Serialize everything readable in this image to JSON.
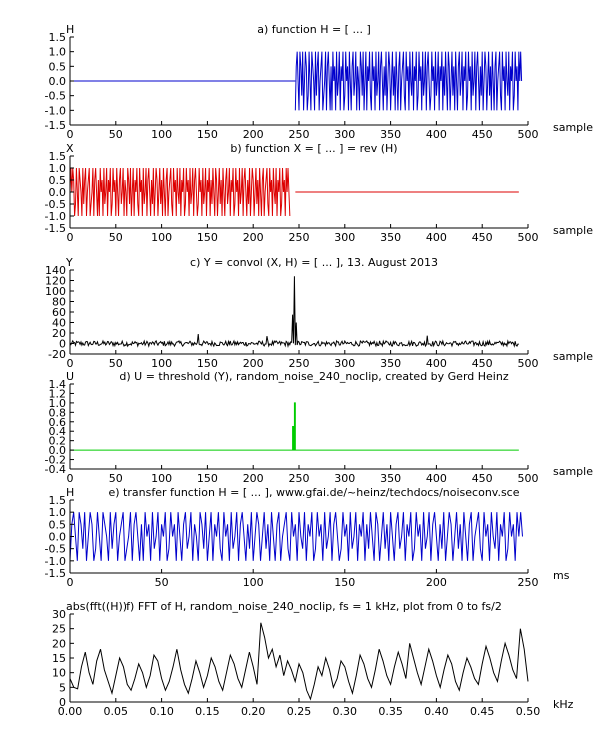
{
  "chart_data": [
    {
      "type": "line",
      "title": "a) function H = [  ...  ]",
      "ylabel": "H",
      "xlabel": "sample",
      "xlim": [
        0,
        500
      ],
      "ylim": [
        -1.5,
        1.5
      ],
      "xticks": [
        0,
        50,
        100,
        150,
        200,
        250,
        300,
        350,
        400,
        450,
        500
      ],
      "yticks": [
        -1.5,
        -1.0,
        -0.5,
        0.0,
        0.5,
        1.0,
        1.5
      ],
      "ytick_decimals": 1,
      "color": "#0000cc",
      "series": [
        {
          "x": [
            0,
            246
          ],
          "y": [
            0,
            0
          ]
        },
        {
          "x_start": 246,
          "x_step": 1,
          "y": [
            -1,
            0.5,
            1,
            0,
            -1,
            1,
            0.5,
            -0.5,
            1,
            -1,
            0,
            1,
            0.5,
            -1,
            -0.5,
            1,
            0,
            -1,
            1,
            0.5,
            0,
            -1,
            1,
            -0.5,
            0.5,
            1,
            -1,
            0,
            0.5,
            1,
            -1,
            -0.5,
            0,
            1,
            -1,
            0.5,
            1,
            0,
            -1,
            0.5,
            -1,
            1,
            0,
            0.5,
            -1,
            1,
            -0.5,
            0,
            1,
            -1,
            0.5,
            0,
            1,
            -1,
            -0.5,
            1,
            0,
            0.5,
            -1,
            1,
            0,
            -1,
            0.5,
            1,
            -0.5,
            0,
            1,
            -1,
            0.5,
            0,
            -1,
            1,
            0.5,
            -0.5,
            1,
            -1,
            0,
            1,
            -1,
            0.5,
            0,
            1,
            -0.5,
            -1,
            1,
            0,
            0.5,
            -1,
            1,
            -0.5,
            0,
            1,
            -1,
            0.5,
            1,
            0,
            -1,
            0.5,
            -0.5,
            1,
            -1,
            0,
            1,
            0.5,
            -1,
            0,
            1,
            -0.5,
            0.5,
            -1,
            1,
            0,
            -1,
            0.5,
            1,
            -1,
            0,
            0.5,
            1,
            -0.5,
            -1,
            1,
            0,
            0.5,
            -1,
            1,
            0,
            -0.5,
            1,
            -1,
            0.5,
            0,
            1,
            -1,
            -0.5,
            1,
            0,
            0.5,
            -1,
            1,
            -0.5,
            0,
            1,
            -1,
            0.5,
            1,
            0,
            -1,
            -0.5,
            1,
            0,
            0.5,
            -1,
            1,
            -0.5,
            0,
            1,
            -1,
            0.5,
            0,
            1,
            -1,
            0.5,
            -0.5,
            1,
            0,
            -1,
            1,
            0.5,
            -1,
            0,
            1,
            -0.5,
            0.5,
            -1,
            1,
            0,
            -1,
            0.5,
            1,
            -0.5,
            0,
            1,
            -1,
            0.5,
            0,
            1,
            -1,
            -0.5,
            1,
            0,
            0.5,
            -1,
            1,
            -0.5,
            0,
            1,
            -1,
            0.5,
            1,
            0,
            -1,
            0.5,
            -0.5,
            1,
            -1,
            0,
            1,
            0.5,
            -1,
            0,
            1,
            -0.5,
            0.5,
            -1,
            1,
            0,
            -1,
            0.5,
            1,
            -1,
            0,
            0.5,
            1,
            -0.5,
            -1,
            1,
            0,
            0.5,
            -1,
            1,
            0,
            -0.5,
            1,
            -1,
            0.5,
            0,
            1,
            -1,
            -0.5,
            1,
            0,
            0.5,
            -1,
            1,
            0,
            1,
            0
          ]
        }
      ]
    },
    {
      "type": "line",
      "title": "b) function X = [  ...  ] = rev (H)",
      "ylabel": "X",
      "xlabel": "sample",
      "xlim": [
        0,
        500
      ],
      "ylim": [
        -1.5,
        1.5
      ],
      "xticks": [
        0,
        50,
        100,
        150,
        200,
        250,
        300,
        350,
        400,
        450,
        500
      ],
      "yticks": [
        -1.5,
        -1.0,
        -0.5,
        0.0,
        0.5,
        1.0,
        1.5
      ],
      "ytick_decimals": 1,
      "color": "#dd0000",
      "series": [
        {
          "x_start": 0,
          "x_step": 1,
          "y": [
            0,
            1,
            0,
            1,
            0.5,
            -1,
            -0.5,
            1,
            0,
            -1,
            1,
            0.5,
            0,
            -1,
            1,
            -0.5,
            0.5,
            1,
            -1,
            0,
            0.5,
            1,
            -1,
            -0.5,
            0,
            1,
            -1,
            0.5,
            1,
            0,
            -1,
            0.5,
            -1,
            1,
            0,
            0.5,
            -1,
            1,
            -0.5,
            0,
            1,
            -1,
            0.5,
            0,
            1,
            -1,
            -0.5,
            1,
            0,
            0.5,
            -1,
            1,
            0,
            -1,
            0.5,
            1,
            -0.5,
            0,
            1,
            -1,
            0.5,
            0,
            -1,
            1,
            0.5,
            -0.5,
            1,
            -1,
            0,
            1,
            -1,
            0.5,
            0,
            1,
            -0.5,
            -1,
            1,
            0,
            0.5,
            -1,
            1,
            -0.5,
            0,
            1,
            -1,
            0.5,
            1,
            0,
            -1,
            0.5,
            -0.5,
            1,
            -1,
            0,
            1,
            0.5,
            -1,
            0,
            1,
            -0.5,
            0.5,
            -1,
            1,
            0,
            -1,
            0.5,
            1,
            -1,
            0,
            0.5,
            1,
            -0.5,
            -1,
            1,
            0,
            0.5,
            -1,
            1,
            0,
            -0.5,
            1,
            -1,
            0.5,
            0,
            1,
            -1,
            -0.5,
            1,
            0,
            0.5,
            -1,
            1,
            -0.5,
            0,
            1,
            -1,
            0.5,
            1,
            0,
            -1,
            -0.5,
            1,
            0,
            0.5,
            -1,
            1,
            -0.5,
            0,
            1,
            -1,
            0.5,
            0,
            1,
            -1,
            0.5,
            -0.5,
            1,
            0,
            -1,
            1,
            0.5,
            -1,
            0,
            1,
            -0.5,
            0.5,
            -1,
            1,
            0,
            -1,
            0.5,
            1,
            -0.5,
            0,
            1,
            -1,
            0.5,
            0,
            1,
            -1,
            -0.5,
            1,
            0,
            0.5,
            -1,
            1,
            -0.5,
            0,
            1,
            -1,
            0.5,
            1,
            0,
            -1,
            0.5,
            -0.5,
            1,
            -1,
            0,
            1,
            0.5,
            -1,
            0,
            1,
            -0.5,
            0.5,
            -1,
            1,
            0,
            -1,
            0.5,
            1,
            -1,
            0,
            0.5,
            1,
            -0.5,
            -1,
            1,
            0,
            0.5,
            -1,
            1,
            0,
            -0.5,
            1,
            -1,
            0.5,
            0,
            1,
            -1,
            -0.5,
            1,
            0,
            0.5,
            -1,
            1,
            0,
            1,
            0,
            -1
          ]
        },
        {
          "x": [
            246,
            490
          ],
          "y": [
            0,
            0
          ]
        }
      ]
    },
    {
      "type": "line",
      "title": "c) Y = convol (X, H) = [  ...  ], 13. August 2013",
      "ylabel": "Y",
      "xlabel": "sample",
      "xlim": [
        0,
        500
      ],
      "ylim": [
        -20,
        140
      ],
      "xticks": [
        0,
        50,
        100,
        150,
        200,
        250,
        300,
        350,
        400,
        450,
        500
      ],
      "yticks": [
        -20,
        0,
        20,
        40,
        60,
        80,
        100,
        120,
        140
      ],
      "ytick_decimals": 0,
      "color": "#000000",
      "noise": {
        "x_start": 0,
        "x_end": 490,
        "amplitude": 5,
        "peak_x": 245,
        "peak_y": 128,
        "sub_peaks": [
          [
            243,
            55
          ],
          [
            247,
            40
          ],
          [
            140,
            18
          ],
          [
            390,
            15
          ],
          [
            215,
            14
          ]
        ]
      }
    },
    {
      "type": "line",
      "title": "d) U = threshold (Y), random_noise_240_noclip, created by Gerd Heinz",
      "ylabel": "U",
      "xlabel": "sample",
      "xlim": [
        0,
        500
      ],
      "ylim": [
        -0.4,
        1.4
      ],
      "xticks": [
        0,
        50,
        100,
        150,
        200,
        250,
        300,
        350,
        400,
        450,
        500
      ],
      "yticks": [
        -0.4,
        -0.2,
        0.0,
        0.2,
        0.4,
        0.6,
        0.8,
        1.0,
        1.2,
        1.4
      ],
      "ytick_decimals": 1,
      "color": "#00cc00",
      "series": [
        {
          "x": [
            0,
            243,
            243,
            244,
            244,
            245,
            245,
            246,
            246,
            490
          ],
          "y": [
            0,
            0,
            0.5,
            0.5,
            0,
            0,
            1.0,
            1.0,
            0,
            0
          ]
        }
      ]
    },
    {
      "type": "line",
      "title": "e) transfer function H = [  ...  ],    www.gfai.de/~heinz/techdocs/noiseconv.sce",
      "ylabel": "H",
      "xlabel": "ms",
      "xlim": [
        0,
        250
      ],
      "ylim": [
        -1.5,
        1.5
      ],
      "xticks": [
        0,
        50,
        100,
        150,
        200,
        250
      ],
      "yticks": [
        -1.5,
        -1.0,
        -0.5,
        0.0,
        0.5,
        1.0,
        1.5
      ],
      "ytick_decimals": 1,
      "color": "#0000cc",
      "series": [
        {
          "x_start": 0,
          "x_step": 1,
          "y": [
            -1,
            0.5,
            1,
            0,
            -1,
            1,
            0.5,
            -0.5,
            1,
            -1,
            0,
            1,
            0.5,
            -1,
            -0.5,
            1,
            0,
            -1,
            1,
            0.5,
            0,
            -1,
            1,
            -0.5,
            0.5,
            1,
            -1,
            0,
            0.5,
            1,
            -1,
            -0.5,
            0,
            1,
            -1,
            0.5,
            1,
            0,
            -1,
            0.5,
            -1,
            1,
            0,
            0.5,
            -1,
            1,
            -0.5,
            0,
            1,
            -1,
            0.5,
            0,
            1,
            -1,
            -0.5,
            1,
            0,
            0.5,
            -1,
            1,
            0,
            -1,
            0.5,
            1,
            -0.5,
            0,
            1,
            -1,
            0.5,
            0,
            -1,
            1,
            0.5,
            -0.5,
            1,
            -1,
            0,
            1,
            -1,
            0.5,
            0,
            1,
            -0.5,
            -1,
            1,
            0,
            0.5,
            -1,
            1,
            -0.5,
            0,
            1,
            -1,
            0.5,
            1,
            0,
            -1,
            0.5,
            -0.5,
            1,
            -1,
            0,
            1,
            0.5,
            -1,
            0,
            1,
            -0.5,
            0.5,
            -1,
            1,
            0,
            -1,
            0.5,
            1,
            -1,
            0,
            0.5,
            1,
            -0.5,
            -1,
            1,
            0,
            0.5,
            -1,
            1,
            0,
            -0.5,
            1,
            -1,
            0.5,
            0,
            1,
            -1,
            -0.5,
            1,
            0,
            0.5,
            -1,
            1,
            -0.5,
            0,
            1,
            -1,
            0.5,
            1,
            0,
            -1,
            -0.5,
            1,
            0,
            0.5,
            -1,
            1,
            -0.5,
            0,
            1,
            -1,
            0.5,
            0,
            1,
            -1,
            0.5,
            -0.5,
            1,
            0,
            -1,
            1,
            0.5,
            -1,
            0,
            1,
            -0.5,
            0.5,
            -1,
            1,
            0,
            -1,
            0.5,
            1,
            -0.5,
            0,
            1,
            -1,
            0.5,
            0,
            1,
            -1,
            -0.5,
            1,
            0,
            0.5,
            -1,
            1,
            -0.5,
            0,
            1,
            -1,
            0.5,
            1,
            0,
            -1,
            0.5,
            -0.5,
            1,
            -1,
            0,
            1,
            0.5,
            -1,
            0,
            1,
            -0.5,
            0.5,
            -1,
            1,
            0,
            -1,
            0.5,
            1,
            -1,
            0,
            0.5,
            1,
            -0.5,
            -1,
            1,
            0,
            0.5,
            -1,
            1,
            0,
            -0.5,
            1,
            -1,
            0.5,
            0,
            1,
            -1,
            -0.5,
            1,
            0,
            0.5,
            -1,
            1,
            0,
            1,
            0
          ]
        }
      ]
    },
    {
      "type": "line",
      "title": "f) FFT of H, random_noise_240_noclip,   fs = 1 kHz, plot from 0 to fs/2",
      "ylabel": "abs(fft((H))",
      "xlabel": "kHz",
      "xlim": [
        0,
        0.5
      ],
      "ylim": [
        0,
        30
      ],
      "xticks": [
        0.0,
        0.05,
        0.1,
        0.15,
        0.2,
        0.25,
        0.3,
        0.35,
        0.4,
        0.45,
        0.5
      ],
      "yticks": [
        0,
        5,
        10,
        15,
        20,
        25,
        30
      ],
      "xtick_decimals": 2,
      "ytick_decimals": 0,
      "color": "#000000",
      "series": [
        {
          "x_start": 0,
          "x_step": 0.0041667,
          "y": [
            8,
            5,
            4.5,
            12,
            17,
            10,
            6,
            14,
            18,
            11,
            7,
            3,
            9,
            15,
            12,
            6,
            4,
            8,
            13,
            10,
            5,
            9,
            16,
            14,
            8,
            4,
            7,
            12,
            18,
            11,
            6,
            3,
            8,
            14,
            10,
            5,
            9,
            15,
            12,
            7,
            4,
            10,
            16,
            13,
            8,
            5,
            11,
            17,
            12,
            6,
            27,
            22,
            15,
            18,
            12,
            16,
            9,
            14,
            11,
            7,
            13,
            10,
            4,
            1,
            6,
            12,
            9,
            15,
            11,
            5,
            8,
            14,
            12,
            7,
            3,
            9,
            16,
            13,
            8,
            5,
            11,
            18,
            14,
            9,
            6,
            12,
            17,
            13,
            8,
            20,
            15,
            10,
            6,
            12,
            18,
            14,
            9,
            5,
            11,
            16,
            13,
            7,
            4,
            10,
            15,
            12,
            8,
            6,
            13,
            19,
            15,
            10,
            7,
            14,
            20,
            16,
            11,
            8,
            25,
            18,
            7
          ]
        }
      ]
    }
  ]
}
